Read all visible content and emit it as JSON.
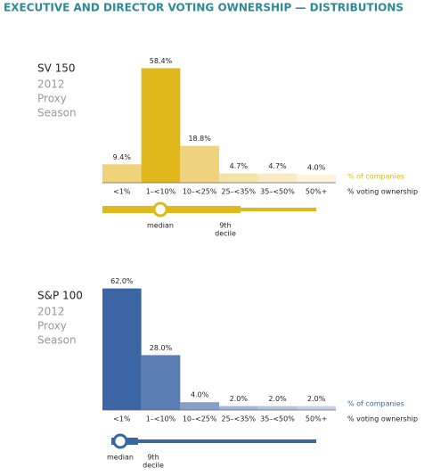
{
  "title": "EXECUTIVE AND DIRECTOR VOTING OWNERSHIP — DISTRIBUTIONS",
  "chart_data": [
    {
      "type": "bar",
      "title": "SV 150",
      "subtitle_lines": [
        "2012",
        "Proxy",
        "Season"
      ],
      "categories": [
        "<1%",
        "1–<10%",
        "10–<25%",
        "25–<35%",
        "35–<50%",
        "50%+"
      ],
      "values": [
        9.4,
        58.4,
        18.8,
        4.7,
        4.7,
        4.0
      ],
      "value_labels": [
        "9.4%",
        "58.4%",
        "18.8%",
        "4.7%",
        "4.7%",
        "4.0%"
      ],
      "colors": [
        "#f0d27a",
        "#e0b81c",
        "#efd37e",
        "#f5e3a6",
        "#f8ebc4",
        "#fbf3dd"
      ],
      "accent": "#e0b81c",
      "series_label": "% of companies",
      "x_label": "% voting ownership",
      "median_label": "median",
      "decile_label": [
        "9th",
        "decile"
      ]
    },
    {
      "type": "bar",
      "title": "S&P 100",
      "subtitle_lines": [
        "2012",
        "Proxy",
        "Season"
      ],
      "categories": [
        "<1%",
        "1–<10%",
        "10–<25%",
        "25–<35%",
        "35–<50%",
        "50%+"
      ],
      "values": [
        62.0,
        28.0,
        4.0,
        2.0,
        2.0,
        2.0
      ],
      "value_labels": [
        "62.0%",
        "28.0%",
        "4.0%",
        "2.0%",
        "2.0%",
        "2.0%"
      ],
      "colors": [
        "#3a67a3",
        "#5a7db4",
        "#879fc8",
        "#a3b5d6",
        "#b4c3de",
        "#c3cfe5"
      ],
      "accent": "#3a67a3",
      "series_label": "% of companies",
      "x_label": "% voting ownership",
      "median_label": "median",
      "decile_label": [
        "9th",
        "decile"
      ]
    }
  ]
}
